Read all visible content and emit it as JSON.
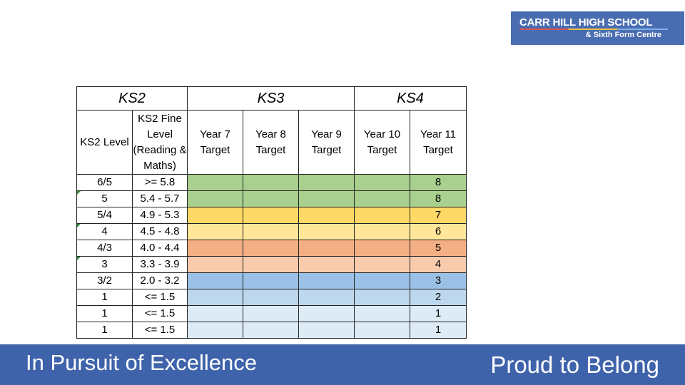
{
  "logo": {
    "title": "CARR HILL HIGH SCHOOL",
    "subtitle": "& Sixth Form Centre"
  },
  "table": {
    "bands": [
      "KS2",
      "KS3",
      "KS4"
    ],
    "headers": [
      "KS2 Level",
      "KS2 Fine Level (Reading & Maths)",
      "Year 7 Target",
      "Year 8 Target",
      "Year 9 Target",
      "Year 10 Target",
      "Year 11 Target"
    ],
    "rows": [
      {
        "level": "6/5",
        "fine": ">= 5.8",
        "y11": "8",
        "color": "#a9d08e"
      },
      {
        "level": "5",
        "fine": "5.4 - 5.7",
        "y11": "8",
        "color": "#a9d08e"
      },
      {
        "level": "5/4",
        "fine": "4.9 - 5.3",
        "y11": "7",
        "color": "#ffd966"
      },
      {
        "level": "4",
        "fine": "4.5 - 4.8",
        "y11": "6",
        "color": "#ffe699"
      },
      {
        "level": "4/3",
        "fine": "4.0 - 4.4",
        "y11": "5",
        "color": "#f4b084"
      },
      {
        "level": "3",
        "fine": "3.3 - 3.9",
        "y11": "4",
        "color": "#f8cbad"
      },
      {
        "level": "3/2",
        "fine": "2.0 - 3.2",
        "y11": "3",
        "color": "#9bc2e6"
      },
      {
        "level": "1",
        "fine": "<= 1.5",
        "y11": "2",
        "color": "#bdd7ee"
      },
      {
        "level": "1",
        "fine": "<= 1.5",
        "y11": "1",
        "color": "#ddebf7"
      },
      {
        "level": "1",
        "fine": "<= 1.5",
        "y11": "1",
        "color": "#ddebf7"
      }
    ]
  },
  "footer": {
    "left": "In Pursuit of Excellence",
    "right": "Proud to Belong"
  }
}
